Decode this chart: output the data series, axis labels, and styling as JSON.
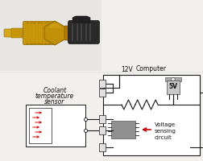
{
  "bg_color": "#f2f0ed",
  "sensor_label": [
    "Coolant",
    "temperature",
    "sensor"
  ],
  "computer_label": "Computer",
  "voltage_label": [
    "Voltage",
    "sensing",
    "circuit"
  ],
  "voltage_5v_label": "5V",
  "voltage_12v_label": "12V",
  "arrow_color": "#cc0000",
  "line_color": "#1a1a1a",
  "font_size": 5.5,
  "small_font": 5.0,
  "photo_bg": "#ffffff",
  "brass_color": "#c8960a",
  "brass_dark": "#8a6600",
  "black_connector": "#2a2a2a",
  "comp_box_color": "#ffffff",
  "reg_body_color": "#c8c8c8",
  "ic_color": "#888888",
  "res_color": "#444444"
}
